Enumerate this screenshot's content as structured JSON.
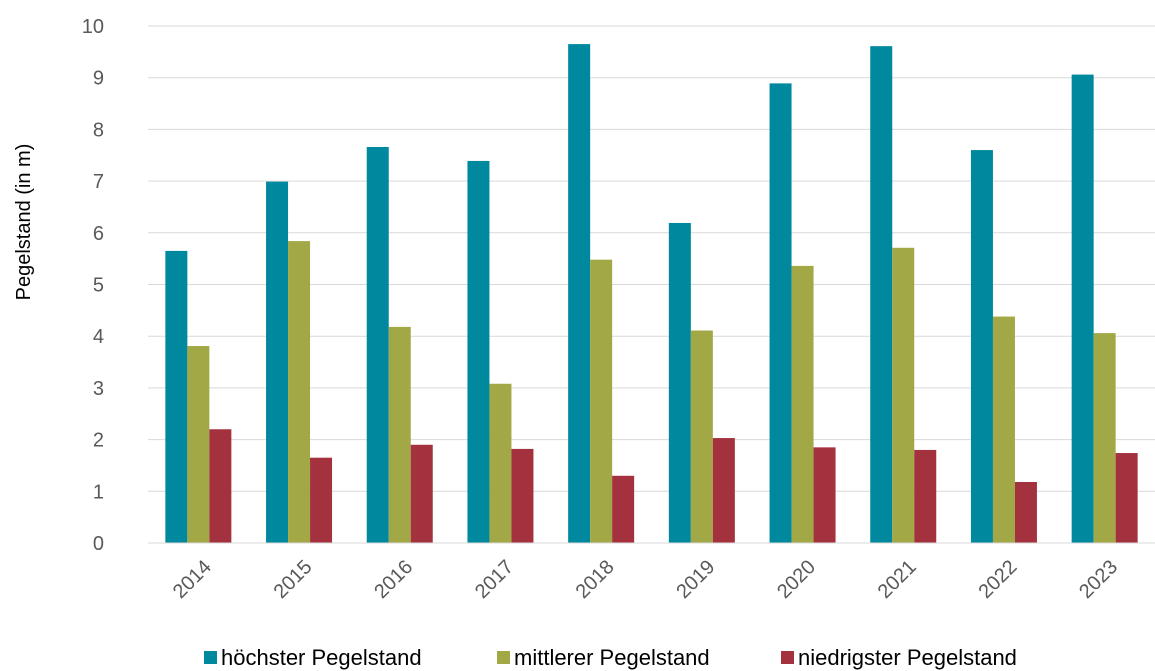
{
  "chart_data": {
    "type": "bar",
    "title": "",
    "xlabel": "",
    "ylabel": "Pegelstand  (in m)",
    "ylim": [
      0,
      10
    ],
    "yticks": [
      0,
      1,
      2,
      3,
      4,
      5,
      6,
      7,
      8,
      9,
      10
    ],
    "grid": true,
    "legend_position": "bottom",
    "categories": [
      "2014",
      "2015",
      "2016",
      "2017",
      "2018",
      "2019",
      "2020",
      "2021",
      "2022",
      "2023"
    ],
    "series": [
      {
        "name": "höchster Pegelstand",
        "color": "#00889E",
        "values": [
          5.65,
          6.99,
          7.66,
          7.39,
          9.65,
          6.19,
          8.89,
          9.61,
          7.6,
          9.06
        ]
      },
      {
        "name": "mittlerer Pegelstand",
        "color": "#A3A847",
        "values": [
          3.81,
          5.84,
          4.18,
          3.08,
          5.48,
          4.11,
          5.36,
          5.71,
          4.38,
          4.06
        ]
      },
      {
        "name": "niedrigster Pegelstand",
        "color": "#A3323E",
        "values": [
          2.2,
          1.65,
          1.9,
          1.82,
          1.3,
          2.03,
          1.85,
          1.8,
          1.18,
          1.74
        ]
      }
    ]
  }
}
